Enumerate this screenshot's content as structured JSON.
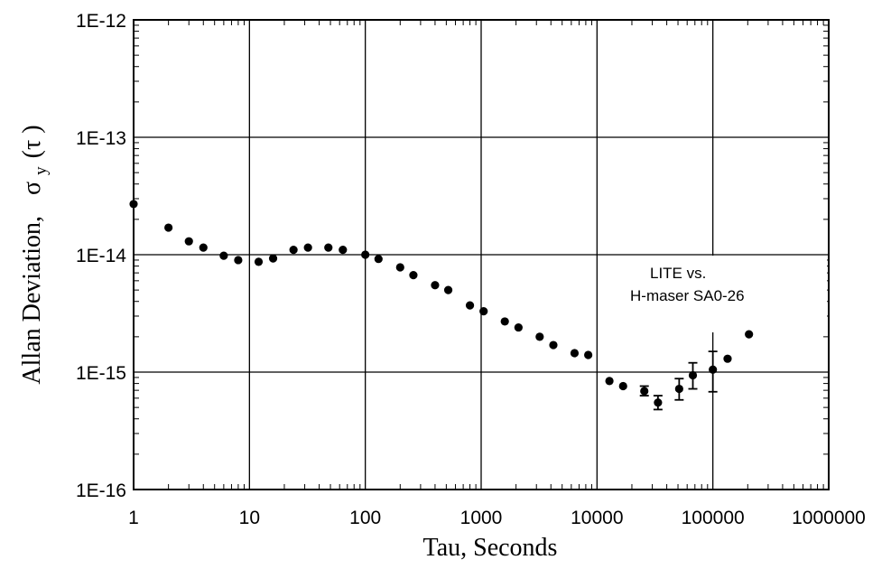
{
  "chart_data": {
    "type": "scatter",
    "xscale": "log",
    "yscale": "log",
    "xlim": [
      1,
      1000000
    ],
    "ylim": [
      1e-16,
      1e-12
    ],
    "grid": true,
    "xlabel": "Tau, Seconds",
    "ylabel": "Allan Deviation,",
    "ylabel_symbol": "σ",
    "ylabel_sub": "y",
    "ylabel_arg": "(τ )",
    "xticks": [
      {
        "value": 1,
        "label": "1"
      },
      {
        "value": 10,
        "label": "10"
      },
      {
        "value": 100,
        "label": "100"
      },
      {
        "value": 1000,
        "label": "1000"
      },
      {
        "value": 10000,
        "label": "10000"
      },
      {
        "value": 100000,
        "label": "100000"
      },
      {
        "value": 1000000,
        "label": "1000000"
      }
    ],
    "yticks": [
      {
        "value": 1e-16,
        "label": "1E-16"
      },
      {
        "value": 1e-15,
        "label": "1E-15"
      },
      {
        "value": 1e-14,
        "label": "1E-14"
      },
      {
        "value": 1e-13,
        "label": "1E-13"
      },
      {
        "value": 1e-12,
        "label": "1E-12"
      }
    ],
    "annotation": {
      "line1": "LITE    vs.",
      "line2": "H-maser  SA0-26"
    },
    "series": [
      {
        "points": [
          {
            "x": 1,
            "y": 2.7e-14
          },
          {
            "x": 2,
            "y": 1.7e-14
          },
          {
            "x": 3,
            "y": 1.3e-14
          },
          {
            "x": 4,
            "y": 1.15e-14
          },
          {
            "x": 6,
            "y": 9.8e-15
          },
          {
            "x": 8,
            "y": 9e-15
          },
          {
            "x": 12,
            "y": 8.7e-15
          },
          {
            "x": 16,
            "y": 9.3e-15
          },
          {
            "x": 24,
            "y": 1.1e-14
          },
          {
            "x": 32,
            "y": 1.15e-14
          },
          {
            "x": 48,
            "y": 1.15e-14
          },
          {
            "x": 64,
            "y": 1.1e-14
          },
          {
            "x": 100,
            "y": 1e-14
          },
          {
            "x": 130,
            "y": 9.2e-15
          },
          {
            "x": 200,
            "y": 7.8e-15
          },
          {
            "x": 260,
            "y": 6.7e-15
          },
          {
            "x": 400,
            "y": 5.5e-15
          },
          {
            "x": 520,
            "y": 5e-15
          },
          {
            "x": 800,
            "y": 3.7e-15
          },
          {
            "x": 1050,
            "y": 3.3e-15
          },
          {
            "x": 1600,
            "y": 2.7e-15
          },
          {
            "x": 2100,
            "y": 2.4e-15
          },
          {
            "x": 3200,
            "y": 2e-15
          },
          {
            "x": 4200,
            "y": 1.7e-15
          },
          {
            "x": 6400,
            "y": 1.45e-15
          },
          {
            "x": 8400,
            "y": 1.4e-15
          },
          {
            "x": 12800,
            "y": 8.4e-16
          },
          {
            "x": 16800,
            "y": 7.6e-16
          },
          {
            "x": 25600,
            "y": 6.9e-16,
            "err_low": 6.3e-16,
            "err_high": 7.6e-16
          },
          {
            "x": 33600,
            "y": 5.5e-16,
            "err_low": 4.8e-16,
            "err_high": 6.3e-16
          },
          {
            "x": 51200,
            "y": 7.2e-16,
            "err_low": 5.8e-16,
            "err_high": 8.8e-16
          },
          {
            "x": 67200,
            "y": 9.4e-16,
            "err_low": 7.2e-16,
            "err_high": 1.2e-15
          },
          {
            "x": 100000,
            "y": 1.05e-15,
            "err_low": 6.8e-16,
            "err_high": 1.5e-15
          },
          {
            "x": 134000,
            "y": 1.3e-15
          },
          {
            "x": 205000,
            "y": 2.1e-15
          }
        ]
      }
    ]
  }
}
